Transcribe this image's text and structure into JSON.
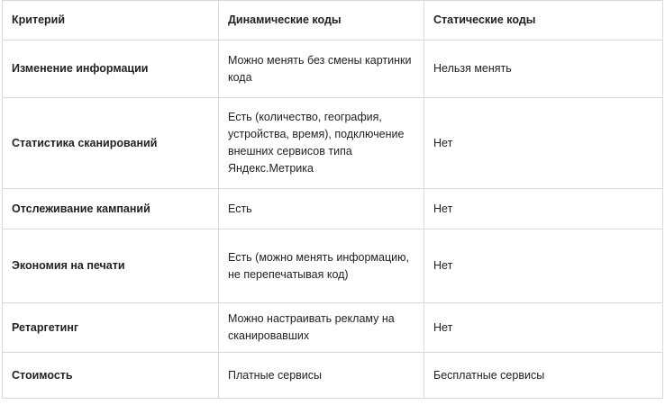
{
  "table": {
    "header": [
      "Критерий",
      "Динамические коды",
      "Статические коды"
    ],
    "rows": [
      [
        "Изменение информации",
        "Можно менять без смены картинки кода",
        "Нельзя менять"
      ],
      [
        "Статистика сканирований",
        "Есть (количество, география, устройства, время), подключение внешних сервисов типа Яндекс.Метрика",
        "Нет"
      ],
      [
        "Отслеживание кампаний",
        "Есть",
        "Нет"
      ],
      [
        "Экономия на печати",
        "Есть (можно менять информацию, не перепечатывая код)",
        "Нет"
      ],
      [
        "Ретаргетинг",
        "Можно настраивать рекламу на сканировавших",
        "Нет"
      ],
      [
        "Стоимость",
        "Платные сервисы",
        "Бесплатные сервисы"
      ]
    ]
  }
}
